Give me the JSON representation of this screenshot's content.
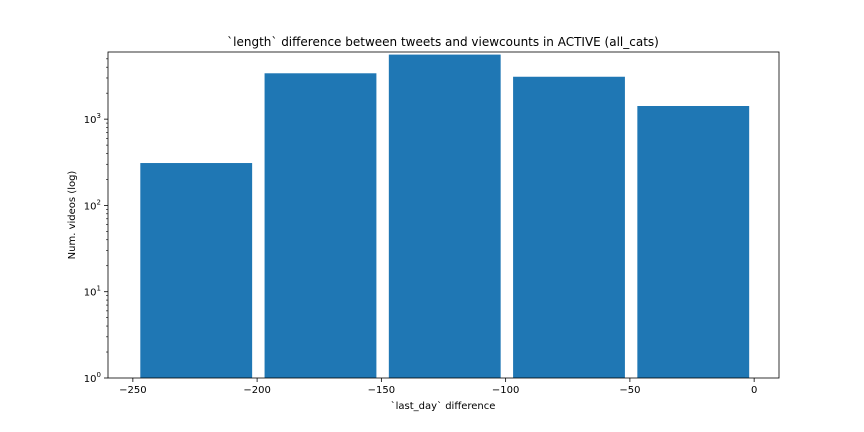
{
  "chart_data": {
    "type": "bar",
    "title": "`length` difference between tweets and viewcounts in ACTIVE (all_cats)",
    "xlabel": "`last_day` difference",
    "ylabel": "Num. videos (log)",
    "yscale": "log",
    "xlim": [
      -260,
      10
    ],
    "ylim": [
      1,
      6000
    ],
    "x_ticks": [
      -250,
      -200,
      -150,
      -100,
      -50,
      0
    ],
    "x_tick_labels": [
      "−250",
      "−200",
      "−150",
      "−100",
      "−50",
      "0"
    ],
    "y_ticks": [
      1,
      10,
      100,
      1000
    ],
    "y_tick_labels": [
      "10",
      "10",
      "10",
      "10"
    ],
    "y_tick_exponents": [
      "0",
      "1",
      "2",
      "3"
    ],
    "bars": [
      {
        "x0": -247,
        "x1": -202,
        "value": 310
      },
      {
        "x0": -197,
        "x1": -152,
        "value": 3400
      },
      {
        "x0": -147,
        "x1": -102,
        "value": 5600
      },
      {
        "x0": -97,
        "x1": -52,
        "value": 3100
      },
      {
        "x0": -47,
        "x1": -2,
        "value": 1420
      }
    ],
    "bar_color": "#1f77b4",
    "grid": false,
    "legend": "none"
  }
}
